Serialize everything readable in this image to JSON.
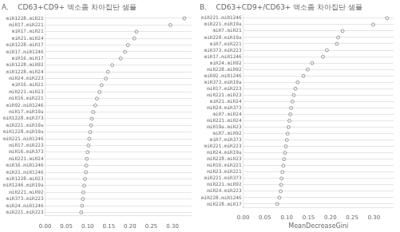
{
  "chart_data": [
    {
      "type": "dot",
      "orientation": "horizontal",
      "title": "A.    CD63+CD9+ 액소좀 차아집단 샘플",
      "categories": [
        "miR1228.miR21",
        "miR17.miR221",
        "miR17.miR21",
        "miR21.miR24",
        "miR1228.miR17",
        "miR17.miR1246",
        "miR16.miR17",
        "miR1228.miR92",
        "miR1228.miR24",
        "miR24.miR223",
        "miR16.miR21",
        "miR221.miR23",
        "miR16.miR221",
        "miR92.miR1246",
        "miR17.miR19a",
        "miR1228.miR373",
        "miR221.miR19a",
        "miR1228.miR19a",
        "miR221.miR1246",
        "miR17.miR223",
        "miR16.miR373",
        "miR221.miR24",
        "miR16.miR1246",
        "miR21.miR1246",
        "miR1228.miR23",
        "miR1246.miR19a",
        "miR221.miR92",
        "miR373.miR223",
        "miR24.miR1246",
        "miR221.miR223"
      ],
      "values": [
        0.328,
        0.295,
        0.215,
        0.21,
        0.195,
        0.188,
        0.178,
        0.158,
        0.148,
        0.143,
        0.133,
        0.128,
        0.122,
        0.118,
        0.113,
        0.11,
        0.108,
        0.106,
        0.104,
        0.102,
        0.1,
        0.098,
        0.097,
        0.096,
        0.094,
        0.092,
        0.09,
        0.089,
        0.087,
        0.085
      ],
      "color": "#999999",
      "marker": "circle",
      "xlim": [
        0.0,
        0.345
      ],
      "xticks": [
        {
          "value": 0.0,
          "label": "0.00"
        },
        0.05,
        {
          "value": 0.1,
          "label": "0.10"
        },
        0.15,
        {
          "value": 0.2,
          "label": "0.20"
        },
        0.25,
        {
          "value": 0.3,
          "label": "0.30"
        }
      ],
      "grid": true
    },
    {
      "type": "dot",
      "orientation": "horizontal",
      "title": "B.    CD63+CD9+/CD63+ 액소좀 차아집단 샘플",
      "x_label": "MeanDecreaseGini",
      "categories": [
        "miR221.miR1246",
        "miR221.miR19a",
        "miR7.miR21",
        "miR228.miR19a",
        "miR7.miR221",
        "miR373.miR223",
        "miR17.miR1246",
        "miR24.miR92",
        "miR228.miR92",
        "miR92.miR1246",
        "miR373.miR19a",
        "miR17.miR223",
        "miR221.miR23",
        "miR21.miR24",
        "miR24.miR373",
        "miR7.miR24",
        "miR221.miR24",
        "miR19a.miR23",
        "miR7.miR92",
        "miR7.miR373",
        "miR221.miR223",
        "miR24.miR19a",
        "miR228.miR23",
        "miR16.miR221",
        "miR23.miR221",
        "miR221.miR373",
        "miR221.miR92",
        "miR24.miR223",
        "miR228.miR1246",
        "miR228.miR17"
      ],
      "values": [
        0.33,
        0.298,
        0.228,
        0.218,
        0.215,
        0.192,
        0.183,
        0.158,
        0.148,
        0.138,
        0.125,
        0.12,
        0.116,
        0.113,
        0.11,
        0.108,
        0.106,
        0.104,
        0.102,
        0.1,
        0.098,
        0.096,
        0.094,
        0.092,
        0.09,
        0.088,
        0.087,
        0.086,
        0.083,
        0.078
      ],
      "color": "#999999",
      "marker": "circle",
      "xlim": [
        0.0,
        0.345
      ],
      "xticks": [
        {
          "value": 0.0,
          "label": "0.00"
        },
        0.05,
        {
          "value": 0.1,
          "label": "0.10"
        },
        0.15,
        {
          "value": 0.2,
          "label": "0.20"
        },
        0.25,
        {
          "value": 0.3,
          "label": "0.30"
        }
      ],
      "grid": true
    }
  ]
}
